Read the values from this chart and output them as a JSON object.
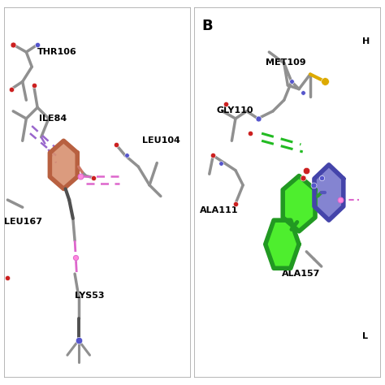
{
  "figure_bg": "#ffffff",
  "panel_a": {
    "thr106_label": "THR106",
    "ile84_label": "ILE84",
    "leu104_label": "LEU104",
    "leu167_label": "LEU167",
    "lys53_label": "LYS53"
  },
  "panel_b": {
    "panel_label": "B",
    "h_label": "H",
    "l_label": "L",
    "met109_label": "MET109",
    "gly110_label": "GLY110",
    "ala111_label": "ALA111",
    "ala157_label": "ALA157"
  },
  "gray": "#b0b0b0",
  "dark_gray": "#606060",
  "red": "#cc2020",
  "blue": "#4444bb",
  "purple": "#9966cc",
  "pink": "#dd77cc",
  "green": "#22bb22",
  "lime": "#44dd22",
  "periwinkle": "#8888cc",
  "salmon": "#cc7766",
  "light_salmon": "#e8a888",
  "orange_sulfur": "#ddaa00",
  "font_size": 8,
  "font_size_B": 13
}
